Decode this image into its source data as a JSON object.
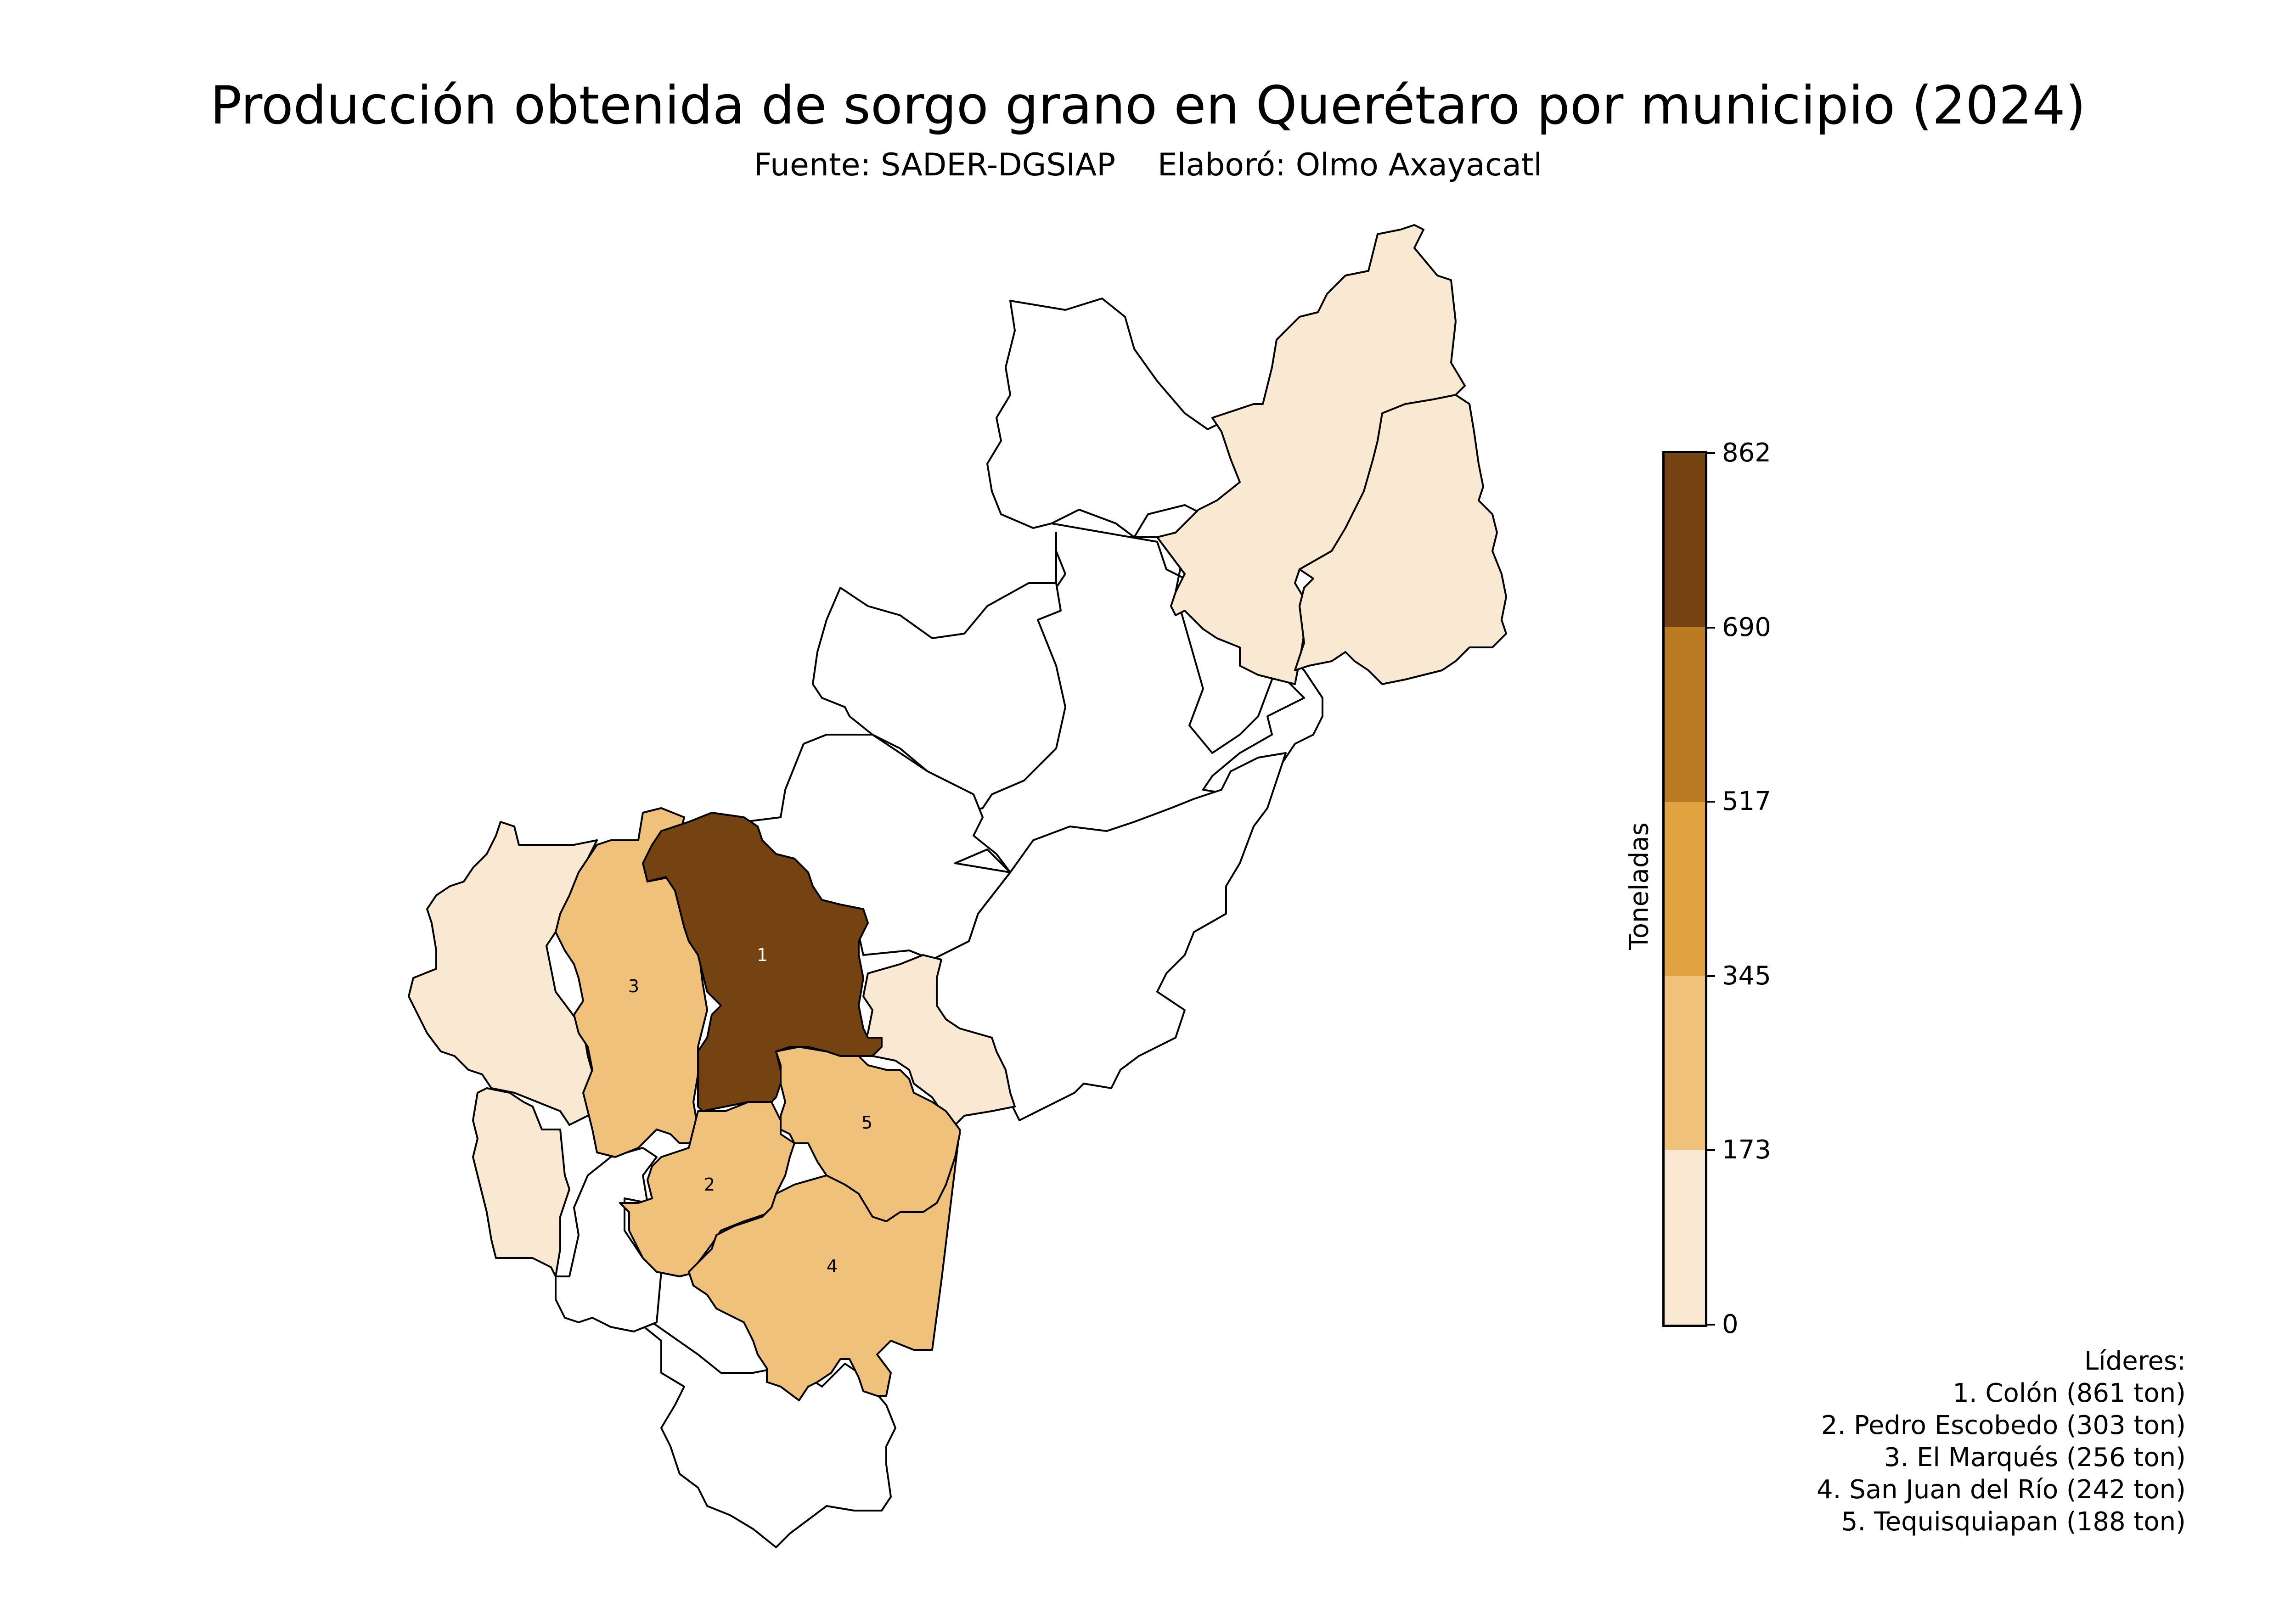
{
  "title": "Producción obtenida de sorgo grano en Querétaro por municipio (2024)",
  "source": "Fuente: SADER-DGSIAP",
  "author": "Elaboró: Olmo Axayacatl",
  "colorbar": {
    "label": "Toneladas",
    "ticks": [
      "0",
      "173",
      "345",
      "517",
      "690",
      "862"
    ],
    "range": [
      0,
      862
    ],
    "bins": [
      {
        "from": 0,
        "to": 173,
        "color": "#f9e9d3"
      },
      {
        "from": 173,
        "to": 345,
        "color": "#f0c17b"
      },
      {
        "from": 345,
        "to": 517,
        "color": "#e0a33f"
      },
      {
        "from": 517,
        "to": 690,
        "color": "#ba7b24"
      },
      {
        "from": 690,
        "to": 862,
        "color": "#744311"
      }
    ]
  },
  "leaders": {
    "heading": "Líderes:",
    "items": [
      "1. Colón (861 ton)",
      "2. Pedro Escobedo (303 ton)",
      "3. El Marqués (256 ton)",
      "4. San Juan del Río (242 ton)",
      "5. Tequisquiapan (188 ton)"
    ]
  },
  "map": {
    "no_data_color": "#ffffff",
    "border_color": "#000000",
    "rank_labels": [
      {
        "rank": "1",
        "municipio": "Colón",
        "value": 861
      },
      {
        "rank": "2",
        "municipio": "Pedro Escobedo",
        "value": 303
      },
      {
        "rank": "3",
        "municipio": "El Marqués",
        "value": 256
      },
      {
        "rank": "4",
        "municipio": "San Juan del Río",
        "value": 242
      },
      {
        "rank": "5",
        "municipio": "Tequisquiapan",
        "value": 188
      }
    ]
  }
}
